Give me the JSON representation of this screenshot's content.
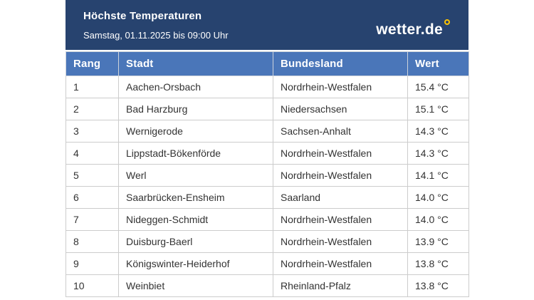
{
  "banner": {
    "title": "Höchste Temperaturen",
    "subtitle": "Samstag, 01.11.2025 bis 09:00 Uhr",
    "logo": {
      "text": "wetter.de",
      "icon": "degree-ring-icon"
    }
  },
  "table": {
    "columns": {
      "rang": "Rang",
      "stadt": "Stadt",
      "bundesland": "Bundesland",
      "wert": "Wert"
    },
    "rows": [
      {
        "rang": "1",
        "stadt": "Aachen-Orsbach",
        "bundesland": "Nordrhein-Westfalen",
        "wert": "15.4 °C"
      },
      {
        "rang": "2",
        "stadt": "Bad Harzburg",
        "bundesland": "Niedersachsen",
        "wert": "15.1 °C"
      },
      {
        "rang": "3",
        "stadt": "Wernigerode",
        "bundesland": "Sachsen-Anhalt",
        "wert": "14.3 °C"
      },
      {
        "rang": "4",
        "stadt": "Lippstadt-Bökenförde",
        "bundesland": "Nordrhein-Westfalen",
        "wert": "14.3 °C"
      },
      {
        "rang": "5",
        "stadt": "Werl",
        "bundesland": "Nordrhein-Westfalen",
        "wert": "14.1 °C"
      },
      {
        "rang": "6",
        "stadt": "Saarbrücken-Ensheim",
        "bundesland": "Saarland",
        "wert": "14.0 °C"
      },
      {
        "rang": "7",
        "stadt": "Nideggen-Schmidt",
        "bundesland": "Nordrhein-Westfalen",
        "wert": "14.0 °C"
      },
      {
        "rang": "8",
        "stadt": "Duisburg-Baerl",
        "bundesland": "Nordrhein-Westfalen",
        "wert": "13.9 °C"
      },
      {
        "rang": "9",
        "stadt": "Königswinter-Heiderhof",
        "bundesland": "Nordrhein-Westfalen",
        "wert": "13.8 °C"
      },
      {
        "rang": "10",
        "stadt": "Weinbiet",
        "bundesland": "Rheinland-Pfalz",
        "wert": "13.8 °C"
      }
    ]
  },
  "colors": {
    "banner_bg": "#27436f",
    "header_row_bg": "#4a76b9",
    "accent_yellow": "#fdc400",
    "row_border": "#cccccc",
    "body_text": "#333333",
    "banner_text": "#ffffff"
  },
  "chart_data": {
    "type": "table",
    "title": "Höchste Temperaturen",
    "subtitle": "Samstag, 01.11.2025 bis 09:00 Uhr",
    "columns": [
      "Rang",
      "Stadt",
      "Bundesland",
      "Wert"
    ],
    "rows": [
      [
        1,
        "Aachen-Orsbach",
        "Nordrhein-Westfalen",
        "15.4 °C"
      ],
      [
        2,
        "Bad Harzburg",
        "Niedersachsen",
        "15.1 °C"
      ],
      [
        3,
        "Wernigerode",
        "Sachsen-Anhalt",
        "14.3 °C"
      ],
      [
        4,
        "Lippstadt-Bökenförde",
        "Nordrhein-Westfalen",
        "14.3 °C"
      ],
      [
        5,
        "Werl",
        "Nordrhein-Westfalen",
        "14.1 °C"
      ],
      [
        6,
        "Saarbrücken-Ensheim",
        "Saarland",
        "14.0 °C"
      ],
      [
        7,
        "Nideggen-Schmidt",
        "Nordrhein-Westfalen",
        "14.0 °C"
      ],
      [
        8,
        "Duisburg-Baerl",
        "Nordrhein-Westfalen",
        "13.9 °C"
      ],
      [
        9,
        "Königswinter-Heiderhof",
        "Nordrhein-Westfalen",
        "13.8 °C"
      ],
      [
        10,
        "Weinbiet",
        "Rheinland-Pfalz",
        "13.8 °C"
      ]
    ],
    "unit": "°C",
    "values_celsius": [
      15.4,
      15.1,
      14.3,
      14.3,
      14.1,
      14.0,
      14.0,
      13.9,
      13.8,
      13.8
    ]
  }
}
